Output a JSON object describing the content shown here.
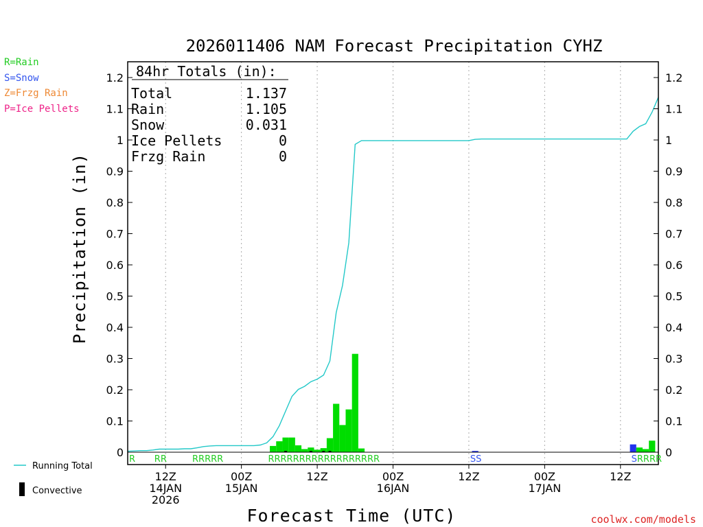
{
  "chart_data": {
    "type": "bar",
    "title": "2026011406 NAM Forecast Precipitation CYHZ",
    "xlabel": "Forecast Time (UTC)",
    "ylabel": "Precipitation (in)",
    "ylim": [
      0,
      1.25
    ],
    "y_ticks": [
      0,
      0.1,
      0.2,
      0.3,
      0.4,
      0.5,
      0.6,
      0.7,
      0.8,
      0.9,
      1,
      1.1,
      1.2
    ],
    "y_tick_labels": [
      "0",
      "0.1",
      "0.2",
      "0.3",
      "0.4",
      "0.5",
      "0.6",
      "0.7",
      "0.8",
      "0.9",
      "1",
      "1.1",
      "1.2"
    ],
    "x_unit": "forecast hour",
    "xlim": [
      0,
      84
    ],
    "x_ticks": [
      {
        "hour": 6,
        "lines": [
          "12Z",
          "14JAN",
          "2026"
        ]
      },
      {
        "hour": 18,
        "lines": [
          "00Z",
          "15JAN"
        ]
      },
      {
        "hour": 30,
        "lines": [
          "12Z"
        ]
      },
      {
        "hour": 42,
        "lines": [
          "00Z",
          "16JAN"
        ]
      },
      {
        "hour": 54,
        "lines": [
          "12Z"
        ]
      },
      {
        "hour": 66,
        "lines": [
          "00Z",
          "17JAN"
        ]
      },
      {
        "hour": 78,
        "lines": [
          "12Z"
        ]
      }
    ],
    "grid": "vertical dotted at tick hours",
    "legend_position": "left",
    "totals_box": {
      "header": "84hr Totals (in):",
      "rows": [
        {
          "label": "Total",
          "value": "1.137"
        },
        {
          "label": "Rain",
          "value": "1.105"
        },
        {
          "label": "Snow",
          "value": "0.031"
        },
        {
          "label": "Ice Pellets",
          "value": "0"
        },
        {
          "label": "Frzg Rain",
          "value": "0"
        }
      ]
    },
    "bars": [
      {
        "hour": 23,
        "value": 0.02,
        "type": "rain"
      },
      {
        "hour": 24,
        "value": 0.035,
        "type": "rain"
      },
      {
        "hour": 25,
        "value": 0.047,
        "type": "rain"
      },
      {
        "hour": 26,
        "value": 0.047,
        "type": "rain"
      },
      {
        "hour": 27,
        "value": 0.022,
        "type": "rain"
      },
      {
        "hour": 28,
        "value": 0.01,
        "type": "rain"
      },
      {
        "hour": 29,
        "value": 0.015,
        "type": "rain"
      },
      {
        "hour": 30,
        "value": 0.008,
        "type": "rain"
      },
      {
        "hour": 31,
        "value": 0.013,
        "type": "rain"
      },
      {
        "hour": 32,
        "value": 0.045,
        "type": "rain"
      },
      {
        "hour": 33,
        "value": 0.155,
        "type": "rain"
      },
      {
        "hour": 34,
        "value": 0.087,
        "type": "rain"
      },
      {
        "hour": 35,
        "value": 0.137,
        "type": "rain"
      },
      {
        "hour": 36,
        "value": 0.315,
        "type": "rain"
      },
      {
        "hour": 37,
        "value": 0.012,
        "type": "rain"
      },
      {
        "hour": 55,
        "value": 0.004,
        "type": "snow"
      },
      {
        "hour": 80,
        "value": 0.025,
        "type": "snow"
      },
      {
        "hour": 81,
        "value": 0.015,
        "type": "rain"
      },
      {
        "hour": 82,
        "value": 0.01,
        "type": "rain"
      },
      {
        "hour": 83,
        "value": 0.037,
        "type": "rain"
      }
    ],
    "convective_bars": [
      {
        "hour": 25,
        "value": 0.004
      },
      {
        "hour": 29,
        "value": 0.004
      },
      {
        "hour": 31,
        "value": 0.004
      },
      {
        "hour": 32,
        "value": 0.004
      }
    ],
    "running_total": {
      "name": "Running Total",
      "points": [
        [
          0,
          0.003
        ],
        [
          1,
          0.004
        ],
        [
          2,
          0.005
        ],
        [
          3,
          0.005
        ],
        [
          4,
          0.007
        ],
        [
          5,
          0.01
        ],
        [
          6,
          0.01
        ],
        [
          7,
          0.01
        ],
        [
          8,
          0.01
        ],
        [
          9,
          0.011
        ],
        [
          10,
          0.011
        ],
        [
          11,
          0.014
        ],
        [
          12,
          0.018
        ],
        [
          13,
          0.02
        ],
        [
          14,
          0.021
        ],
        [
          15,
          0.021
        ],
        [
          16,
          0.021
        ],
        [
          17,
          0.021
        ],
        [
          18,
          0.021
        ],
        [
          19,
          0.021
        ],
        [
          20,
          0.021
        ],
        [
          21,
          0.023
        ],
        [
          22,
          0.03
        ],
        [
          23,
          0.05
        ],
        [
          24,
          0.085
        ],
        [
          25,
          0.132
        ],
        [
          26,
          0.179
        ],
        [
          27,
          0.201
        ],
        [
          28,
          0.211
        ],
        [
          29,
          0.226
        ],
        [
          30,
          0.234
        ],
        [
          31,
          0.247
        ],
        [
          32,
          0.292
        ],
        [
          33,
          0.447
        ],
        [
          34,
          0.534
        ],
        [
          35,
          0.671
        ],
        [
          36,
          0.986
        ],
        [
          37,
          0.998
        ],
        [
          38,
          0.998
        ],
        [
          39,
          0.998
        ],
        [
          40,
          0.998
        ],
        [
          45,
          0.998
        ],
        [
          50,
          0.998
        ],
        [
          54,
          0.998
        ],
        [
          55,
          1.002
        ],
        [
          56,
          1.003
        ],
        [
          60,
          1.003
        ],
        [
          65,
          1.003
        ],
        [
          70,
          1.003
        ],
        [
          75,
          1.003
        ],
        [
          79,
          1.003
        ],
        [
          80,
          1.028
        ],
        [
          81,
          1.043
        ],
        [
          82,
          1.052
        ],
        [
          83,
          1.089
        ],
        [
          84,
          1.137
        ]
      ]
    },
    "ptype_strips": [
      {
        "hour": 0,
        "text": "R",
        "type": "rain"
      },
      {
        "hour": 4,
        "text": "RR",
        "type": "rain"
      },
      {
        "hour": 10,
        "text": "RRRRR",
        "type": "rain"
      },
      {
        "hour": 22,
        "text": "RRRRRRRRRRRRRRRRRR",
        "type": "rain"
      },
      {
        "hour": 54,
        "text": "SS",
        "type": "snow"
      },
      {
        "hour": 79.5,
        "text": "SRRRR",
        "type": "mixed"
      }
    ],
    "ptype_key": [
      {
        "text": "R=Rain",
        "color": "#22cc22"
      },
      {
        "text": "S=Snow",
        "color": "#3355ee"
      },
      {
        "text": "Z=Frzg Rain",
        "color": "#ee8833"
      },
      {
        "text": "P=Ice Pellets",
        "color": "#ee2288"
      }
    ],
    "legend": {
      "running_total_label": "Running Total",
      "convective_label": "Convective"
    },
    "colors": {
      "rain": "#00dd00",
      "snow": "#2233ee",
      "convective": "#000000",
      "running_total": "#22c8c8",
      "grid": "#aaaaaa",
      "rain_text": "#22cc22",
      "snow_text": "#3355ee",
      "credit_text": "#dd2222"
    },
    "credit": "coolwx.com/models"
  }
}
